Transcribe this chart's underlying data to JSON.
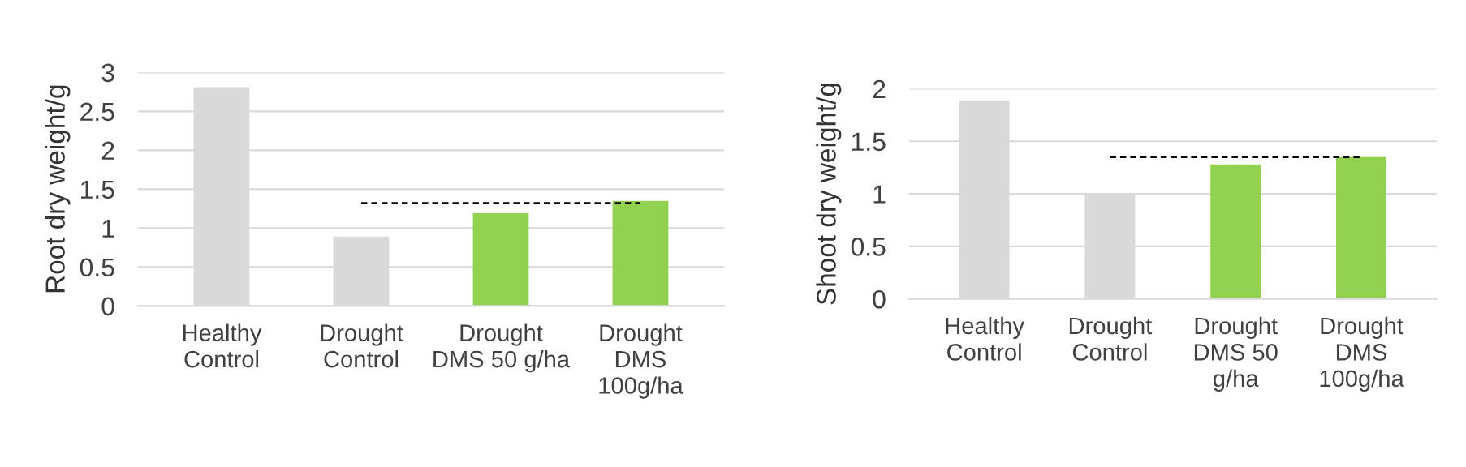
{
  "chart_data": [
    {
      "type": "bar",
      "ylabel": "Root dry weight/g",
      "categories": [
        "Healthy\nControl",
        "Drought\nControl",
        "Drought\nDMS 50 g/ha",
        "Drought\nDMS\n100g/ha"
      ],
      "ylim": [
        0,
        3
      ],
      "yticks": [
        0,
        {
          "value": 0.5,
          "label": "0.5"
        },
        1,
        {
          "value": 1.5,
          "label": "1.5"
        },
        2,
        {
          "value": 2.5,
          "label": "2.5"
        },
        3
      ],
      "grid": "y",
      "legend": false,
      "series": [
        {
          "values": [
            2.81,
            0.89,
            1.19,
            1.35
          ],
          "colors": [
            "#d9d9d9",
            "#d9d9d9",
            "#92d050",
            "#92d050"
          ]
        },
        {
          "type": "line",
          "values": [
            null,
            1.32,
            1.32,
            1.32
          ],
          "color": "#000000",
          "line_style": "dashed"
        }
      ]
    },
    {
      "type": "bar",
      "ylabel": "Shoot dry weight/g",
      "categories": [
        "Healthy\nControl",
        "Drought\nControl",
        "Drought\nDMS 50\ng/ha",
        "Drought\nDMS\n100g/ha"
      ],
      "ylim": [
        0,
        2
      ],
      "yticks": [
        0,
        {
          "value": 0.5,
          "label": "0.5"
        },
        1,
        {
          "value": 1.5,
          "label": "1.5"
        },
        2
      ],
      "grid": "y",
      "legend": false,
      "series": [
        {
          "values": [
            1.89,
            1.0,
            1.28,
            1.35
          ],
          "colors": [
            "#d9d9d9",
            "#d9d9d9",
            "#92d050",
            "#92d050"
          ]
        },
        {
          "type": "line",
          "values": [
            null,
            1.35,
            1.35,
            1.35
          ],
          "color": "#000000",
          "line_style": "dashed"
        }
      ]
    }
  ]
}
